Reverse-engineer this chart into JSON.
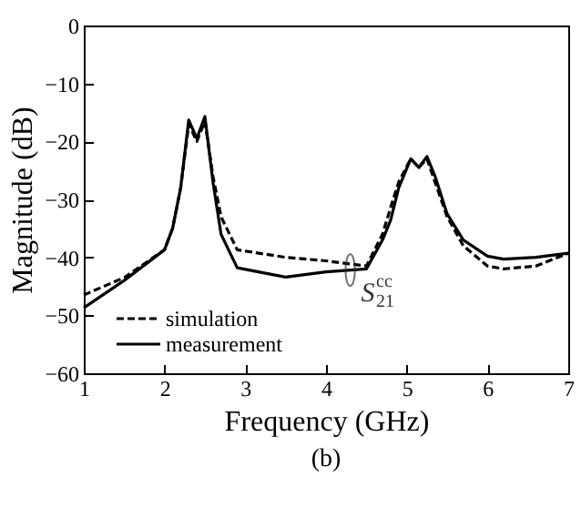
{
  "chart_data": {
    "type": "line",
    "xlabel": "Frequency (GHz)",
    "ylabel": "Magnitude (dB)",
    "xlim": [
      1,
      7
    ],
    "ylim": [
      -60,
      0
    ],
    "xticks": [
      1,
      2,
      3,
      4,
      5,
      6,
      7
    ],
    "yticks": [
      -60,
      -50,
      -40,
      -30,
      -20,
      -10,
      0
    ],
    "grid": false,
    "legend": "bottom left",
    "marker": "none",
    "series": [
      {
        "name": "simulation",
        "color": "#000000",
        "line_style": "dashed",
        "x": [
          1,
          1.5,
          2,
          2.1,
          2.2,
          2.3,
          2.4,
          2.5,
          2.6,
          2.7,
          2.9,
          3.5,
          4,
          4.5,
          4.7,
          4.8,
          4.9,
          5.05,
          5.15,
          5.25,
          5.35,
          5.5,
          5.7,
          6,
          6.2,
          6.6,
          7
        ],
        "values": [
          -46.5,
          -43.5,
          -38.7,
          -35,
          -28,
          -17,
          -20,
          -16.5,
          -26,
          -33,
          -38.7,
          -40,
          -40.6,
          -41.5,
          -36,
          -31.4,
          -27,
          -23,
          -24.5,
          -23,
          -27,
          -33,
          -38,
          -41.5,
          -42,
          -41.5,
          -39.3
        ]
      },
      {
        "name": "measurement",
        "color": "#000000",
        "line_style": "solid",
        "x": [
          1,
          1.5,
          2,
          2.1,
          2.2,
          2.3,
          2.4,
          2.5,
          2.6,
          2.7,
          2.9,
          3.5,
          4,
          4.5,
          4.7,
          4.8,
          4.9,
          5.05,
          5.15,
          5.25,
          5.35,
          5.5,
          5.7,
          6,
          6.2,
          6.6,
          7
        ],
        "values": [
          -48.7,
          -44,
          -38.7,
          -35,
          -28,
          -16.3,
          -19.5,
          -15.7,
          -27,
          -36,
          -41.8,
          -43.4,
          -42.5,
          -42,
          -37,
          -33.6,
          -28,
          -23,
          -24.5,
          -22.6,
          -26,
          -32.5,
          -37,
          -39.8,
          -40.3,
          -40,
          -39.3
        ]
      }
    ],
    "annotations": [
      {
        "text": "S$^{cc}$$_{21}$",
        "x": 4.3,
        "y": -42.2
      },
      "(b)"
    ]
  }
}
